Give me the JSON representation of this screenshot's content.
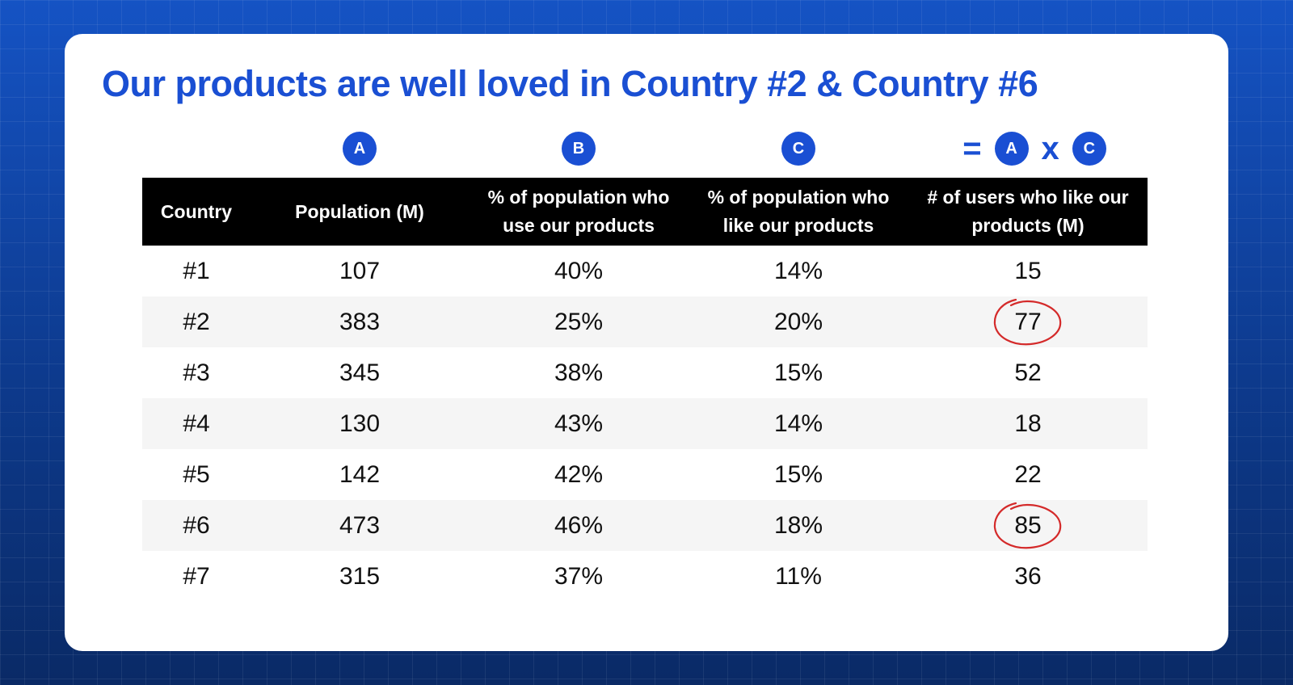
{
  "title": "Our products are well loved in Country #2 & Country #6",
  "formula": {
    "badges": [
      "A",
      "B",
      "C"
    ],
    "equals": "=",
    "result_left": "A",
    "times": "x",
    "result_right": "C"
  },
  "chart_data": {
    "type": "table",
    "title": "Our products are well loved in Country #2 & Country #6",
    "columns": [
      "Country",
      "Population (M)",
      "% of population who use our products",
      "% of population who like our products",
      "# of users who like our products (M)"
    ],
    "rows": [
      [
        "#1",
        "107",
        "40%",
        "14%",
        "15"
      ],
      [
        "#2",
        "383",
        "25%",
        "20%",
        "77"
      ],
      [
        "#3",
        "345",
        "38%",
        "15%",
        "52"
      ],
      [
        "#4",
        "130",
        "43%",
        "14%",
        "18"
      ],
      [
        "#5",
        "142",
        "42%",
        "15%",
        "22"
      ],
      [
        "#6",
        "473",
        "46%",
        "18%",
        "85"
      ],
      [
        "#7",
        "315",
        "37%",
        "11%",
        "36"
      ]
    ],
    "highlighted_rows": [
      "#2",
      "#6"
    ],
    "highlight_color": "#d42a2a"
  },
  "colors": {
    "accent": "#1a4fd3",
    "header_bg": "#000000",
    "alt_row_bg": "#f5f5f5",
    "highlight": "#d42a2a"
  }
}
